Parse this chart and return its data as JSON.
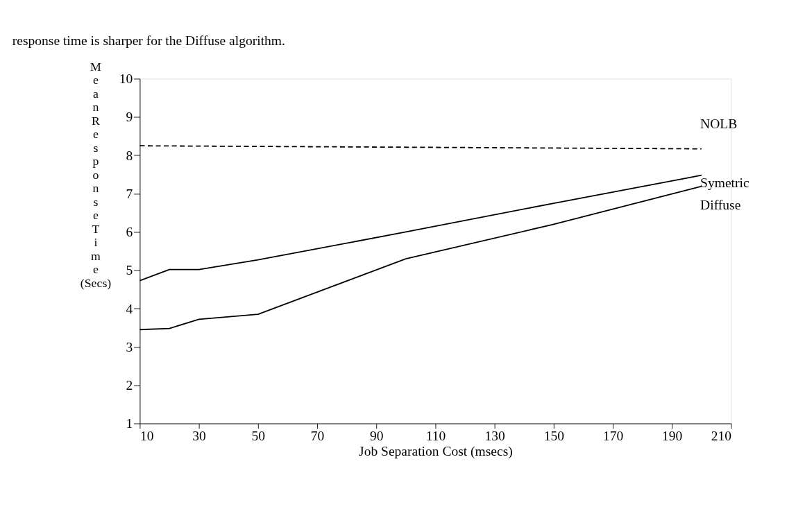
{
  "chart_data": {
    "type": "line",
    "annotations": [
      "response time is sharper for the Diffuse algorithm."
    ],
    "xlabel": "Job Separation Cost (msecs)",
    "ylabel": "Mean Response Time (Secs)",
    "xlim": [
      10,
      210
    ],
    "xticks": [
      10,
      30,
      50,
      70,
      90,
      110,
      130,
      150,
      170,
      190,
      210
    ],
    "ylim": [
      1,
      10
    ],
    "yticks": [
      1,
      2,
      3,
      4,
      5,
      6,
      7,
      8,
      9,
      10
    ],
    "grid": false,
    "marker": "none",
    "series": [
      {
        "name": "NOLB",
        "color": "#000000",
        "line_style": "dashed",
        "x": [
          10,
          200
        ],
        "values": [
          8.25,
          8.17
        ]
      },
      {
        "name": "Symetric",
        "color": "#000000",
        "line_style": "solid",
        "x": [
          10,
          20,
          30,
          50,
          100,
          150,
          200
        ],
        "values": [
          4.73,
          5.02,
          5.02,
          5.27,
          6.0,
          6.75,
          7.48
        ]
      },
      {
        "name": "Diffuse",
        "color": "#000000",
        "line_style": "solid",
        "x": [
          10,
          20,
          30,
          50,
          100,
          150,
          200
        ],
        "values": [
          3.45,
          3.48,
          3.72,
          3.85,
          5.3,
          6.2,
          7.19
        ]
      }
    ]
  }
}
